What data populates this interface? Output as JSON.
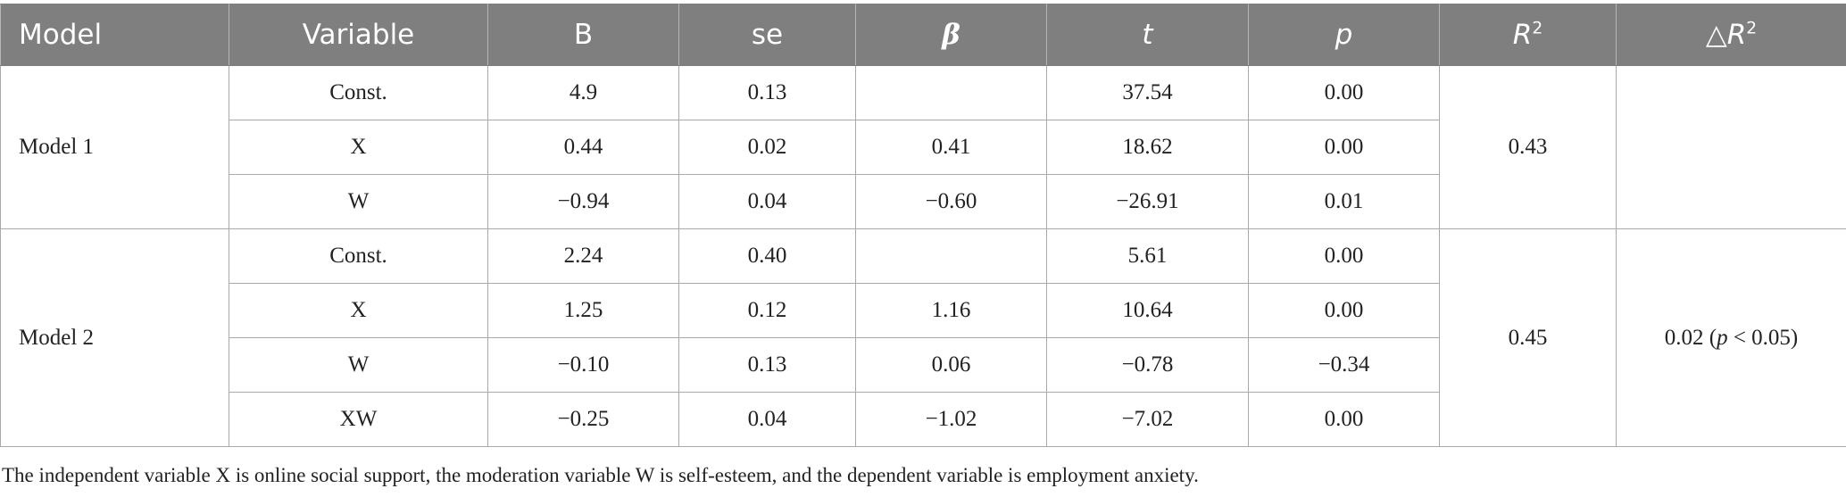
{
  "header": {
    "model": "Model",
    "variable": "Variable",
    "b": "B",
    "se": "se",
    "beta": "β",
    "t": "t",
    "p": "p",
    "r2_base": "R",
    "r2_sup": "2",
    "delta_symbol": "△",
    "delta_base": "R",
    "delta_sup": "2"
  },
  "models": [
    {
      "name": "Model 1",
      "r2": "0.43",
      "delta_r2": "",
      "rows": [
        {
          "variable": "Const.",
          "b": "4.9",
          "se": "0.13",
          "beta": "",
          "t": "37.54",
          "p": "0.00"
        },
        {
          "variable": "X",
          "b": "0.44",
          "se": "0.02",
          "beta": "0.41",
          "t": "18.62",
          "p": "0.00"
        },
        {
          "variable": "W",
          "b": "−0.94",
          "se": "0.04",
          "beta": "−0.60",
          "t": "−26.91",
          "p": "0.01"
        }
      ]
    },
    {
      "name": "Model 2",
      "r2": "0.45",
      "delta_r2": "0.02 (",
      "delta_r2_p": "p",
      "delta_r2_rest": " < 0.05)",
      "rows": [
        {
          "variable": "Const.",
          "b": "2.24",
          "se": "0.40",
          "beta": "",
          "t": "5.61",
          "p": "0.00"
        },
        {
          "variable": "X",
          "b": "1.25",
          "se": "0.12",
          "beta": "1.16",
          "t": "10.64",
          "p": "0.00"
        },
        {
          "variable": "W",
          "b": "−0.10",
          "se": "0.13",
          "beta": "0.06",
          "t": "−0.78",
          "p": "−0.34"
        },
        {
          "variable": "XW",
          "b": "−0.25",
          "se": "0.04",
          "beta": "−1.02",
          "t": "−7.02",
          "p": "0.00"
        }
      ]
    }
  ],
  "note": "The independent variable X is online social support, the moderation variable W is self-esteem, and the dependent variable is employment anxiety."
}
